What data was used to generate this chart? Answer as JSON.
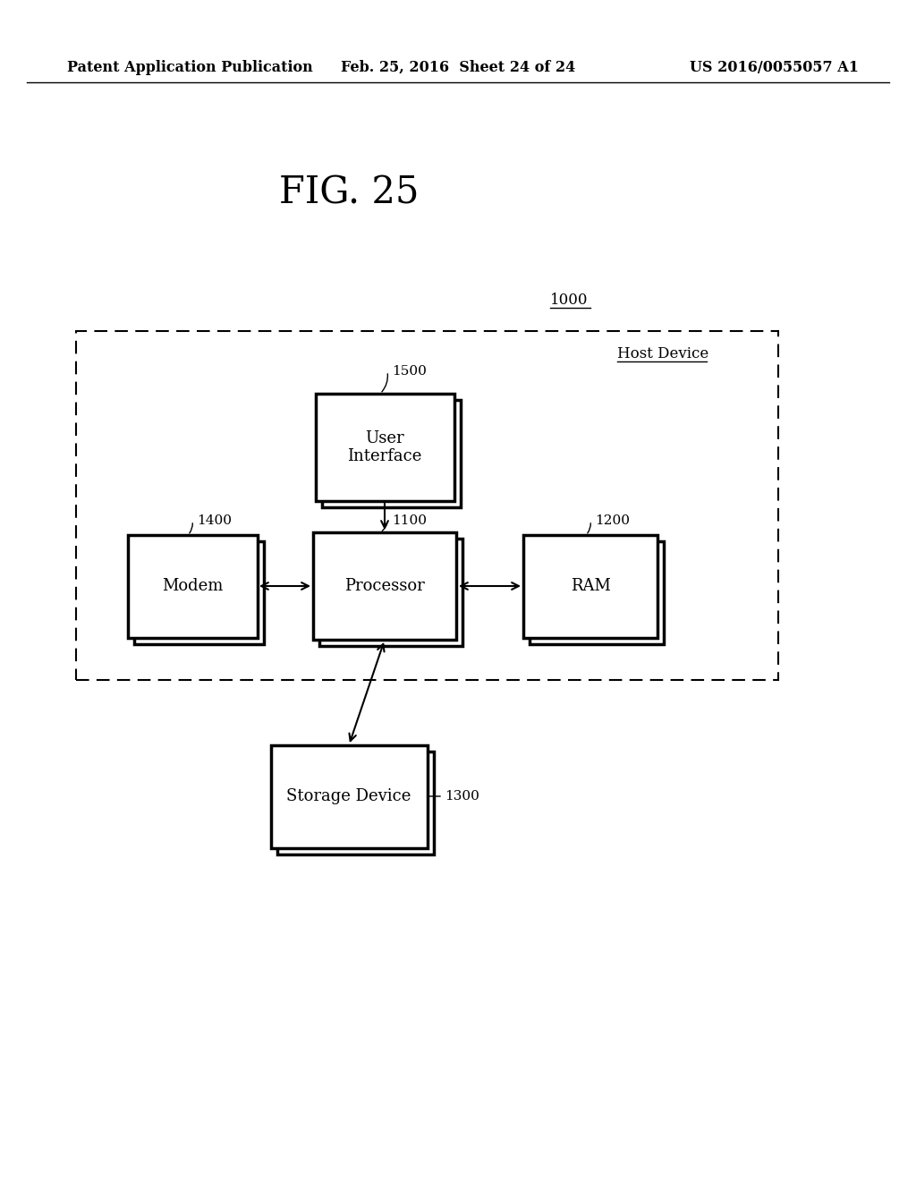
{
  "bg_color": "#ffffff",
  "header_left": "Patent Application Publication",
  "header_mid": "Feb. 25, 2016  Sheet 24 of 24",
  "header_right": "US 2016/0055057 A1",
  "title": "FIG. 25",
  "label_1000": "1000",
  "label_host": "Host Device",
  "box_ui_label": "User\nInterface",
  "box_proc_label": "Processor",
  "box_modem_label": "Modem",
  "box_ram_label": "RAM",
  "box_storage_label": "Storage Device",
  "ref_ui": "1500",
  "ref_proc": "1100",
  "ref_modem": "1400",
  "ref_ram": "1200",
  "ref_storage": "1300"
}
